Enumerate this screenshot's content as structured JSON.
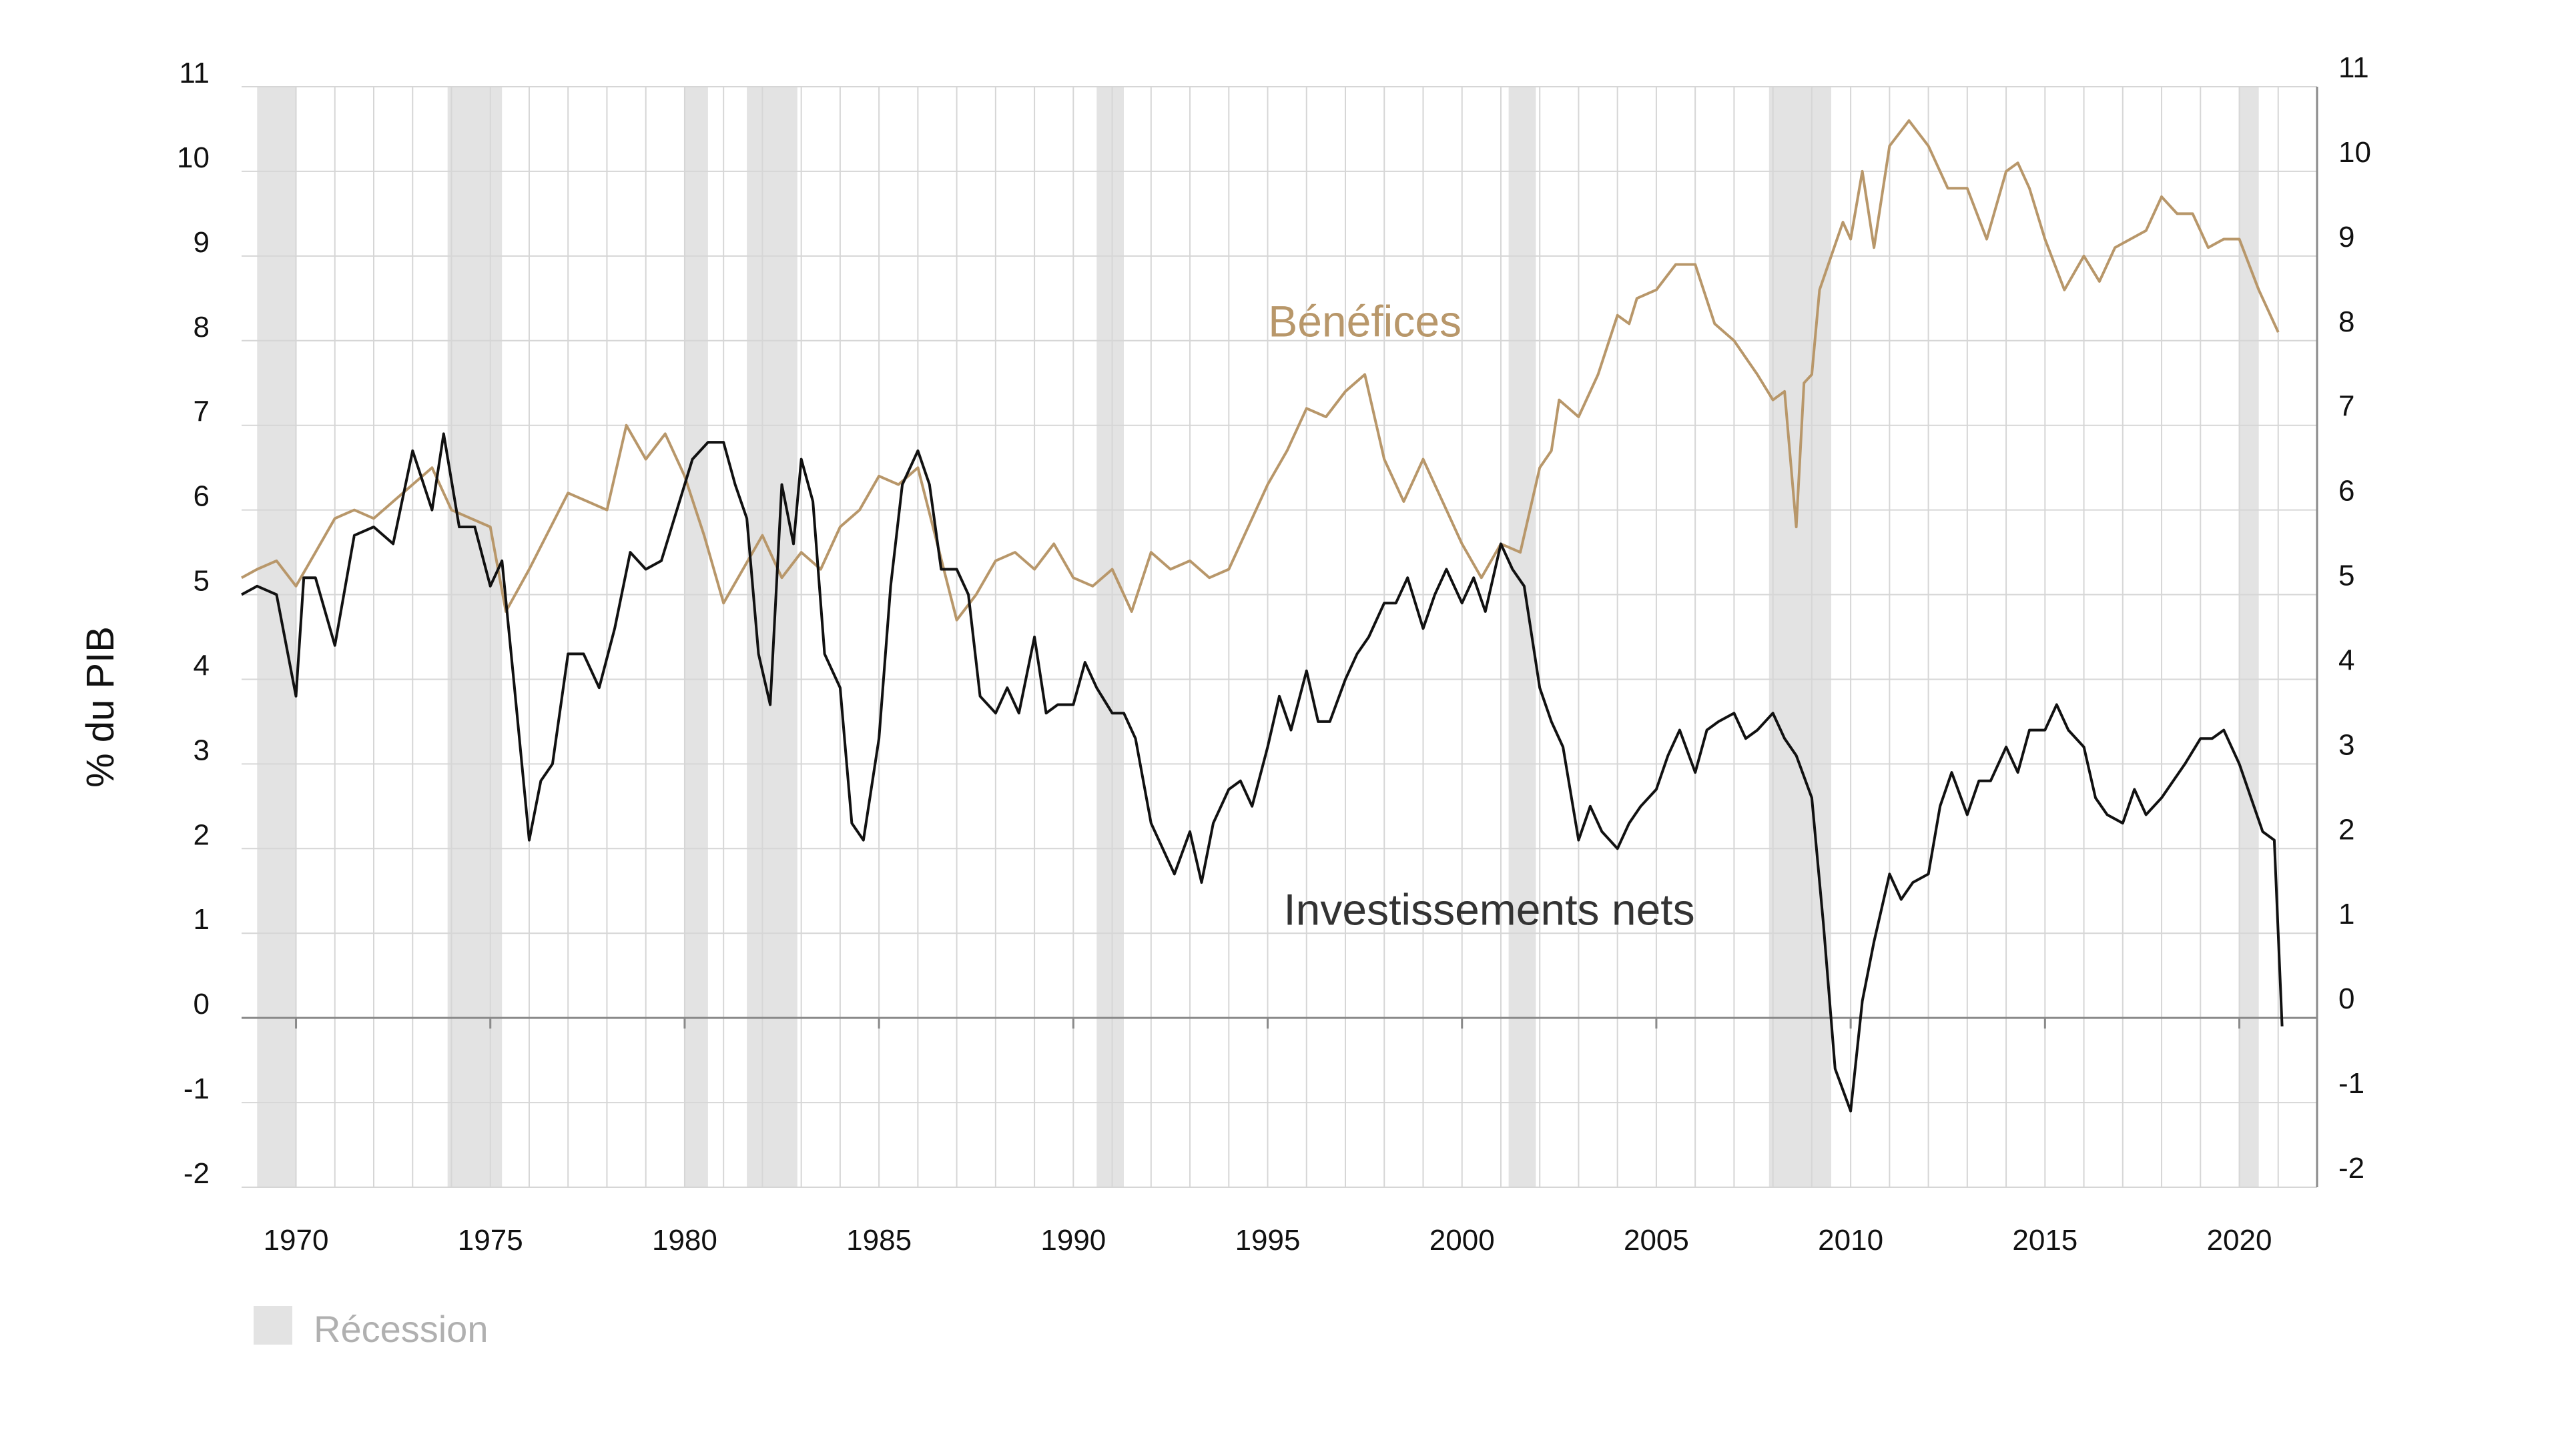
{
  "chart_data": {
    "type": "line",
    "title": "",
    "xlabel": "",
    "ylabel": "% du PIB",
    "xlim": [
      1968.6,
      2022.0
    ],
    "ylim": [
      -2,
      11
    ],
    "y_ticks": [
      "-2",
      "-1",
      "0",
      "1",
      "2",
      "3",
      "4",
      "5",
      "6",
      "7",
      "8",
      "9",
      "10",
      "11"
    ],
    "x_ticks": [
      "1970",
      "1975",
      "1980",
      "1985",
      "1990",
      "1995",
      "2000",
      "2005",
      "2010",
      "2015",
      "2020"
    ],
    "grid": true,
    "right_axis_ticks": true,
    "legend": {
      "label": "Récession",
      "position": "bottom-left",
      "color": "#e3e3e3"
    },
    "recessions": [
      [
        1969.0,
        1970.0
      ],
      [
        1973.9,
        1975.3
      ],
      [
        1980.0,
        1980.6
      ],
      [
        1981.6,
        1982.9
      ],
      [
        1990.6,
        1991.3
      ],
      [
        2001.2,
        2001.9
      ],
      [
        2007.9,
        2009.5
      ],
      [
        2020.0,
        2020.5
      ]
    ],
    "series": [
      {
        "name": "Bénéfices",
        "color": "#b8976a",
        "x": [
          1968.6,
          1969.0,
          1969.5,
          1970.0,
          1970.5,
          1971.0,
          1971.5,
          1972.0,
          1972.5,
          1973.0,
          1973.5,
          1974.0,
          1974.5,
          1975.0,
          1975.4,
          1976.0,
          1977.0,
          1978.0,
          1978.5,
          1979.0,
          1979.5,
          1980.0,
          1980.5,
          1981.0,
          1981.5,
          1982.0,
          1982.5,
          1983.0,
          1983.5,
          1984.0,
          1984.5,
          1985.0,
          1985.5,
          1986.0,
          1986.5,
          1987.0,
          1987.5,
          1988.0,
          1988.5,
          1989.0,
          1989.5,
          1990.0,
          1990.5,
          1991.0,
          1991.5,
          1992.0,
          1992.5,
          1993.0,
          1993.5,
          1994.0,
          1994.5,
          1995.0,
          1995.5,
          1996.0,
          1996.5,
          1997.0,
          1997.5,
          1998.0,
          1998.5,
          1999.0,
          1999.5,
          2000.0,
          2000.5,
          2001.0,
          2001.5,
          2002.0,
          2002.3,
          2002.5,
          2003.0,
          2003.5,
          2004.0,
          2004.3,
          2004.5,
          2005.0,
          2005.5,
          2006.0,
          2006.5,
          2007.0,
          2007.3,
          2007.6,
          2008.0,
          2008.3,
          2008.6,
          2008.8,
          2009.0,
          2009.2,
          2009.5,
          2009.8,
          2010.0,
          2010.3,
          2010.6,
          2011.0,
          2011.5,
          2012.0,
          2012.5,
          2013.0,
          2013.5,
          2014.0,
          2014.3,
          2014.6,
          2015.0,
          2015.5,
          2016.0,
          2016.4,
          2016.8,
          2017.2,
          2017.6,
          2018.0,
          2018.4,
          2018.8,
          2019.2,
          2019.6,
          2020.0,
          2020.5,
          2021.0
        ],
        "values": [
          5.2,
          5.3,
          5.4,
          5.1,
          5.5,
          5.9,
          6.0,
          5.9,
          6.1,
          6.3,
          6.5,
          6.0,
          5.9,
          5.8,
          4.8,
          5.3,
          6.2,
          6.0,
          7.0,
          6.6,
          6.9,
          6.4,
          5.7,
          4.9,
          5.3,
          5.7,
          5.2,
          5.5,
          5.3,
          5.8,
          6.0,
          6.4,
          6.3,
          6.5,
          5.6,
          4.7,
          5.0,
          5.4,
          5.5,
          5.3,
          5.6,
          5.2,
          5.1,
          5.3,
          4.8,
          5.5,
          5.3,
          5.4,
          5.2,
          5.3,
          5.8,
          6.3,
          6.7,
          7.2,
          7.1,
          7.4,
          7.6,
          6.6,
          6.1,
          6.6,
          6.1,
          5.6,
          5.2,
          5.6,
          5.5,
          6.5,
          6.7,
          7.3,
          7.1,
          7.6,
          8.3,
          8.2,
          8.5,
          8.6,
          8.9,
          8.9,
          8.2,
          8.0,
          7.8,
          7.6,
          7.3,
          7.4,
          5.8,
          7.5,
          7.6,
          8.6,
          9.0,
          9.4,
          9.2,
          10.0,
          9.1,
          10.3,
          10.6,
          10.3,
          9.8,
          9.8,
          9.2,
          10.0,
          10.1,
          9.8,
          9.2,
          8.6,
          9.0,
          8.7,
          9.1,
          9.2,
          9.3,
          9.7,
          9.5,
          9.5,
          9.1,
          9.2,
          9.2,
          8.6,
          8.1
        ]
      },
      {
        "name": "Investissements nets",
        "color": "#111111",
        "x": [
          1968.6,
          1969.0,
          1969.5,
          1970.0,
          1970.2,
          1970.5,
          1971.0,
          1971.5,
          1972.0,
          1972.5,
          1973.0,
          1973.5,
          1973.8,
          1974.2,
          1974.6,
          1975.0,
          1975.3,
          1975.6,
          1976.0,
          1976.3,
          1976.6,
          1977.0,
          1977.4,
          1977.8,
          1978.2,
          1978.6,
          1979.0,
          1979.4,
          1979.8,
          1980.2,
          1980.6,
          1981.0,
          1981.3,
          1981.6,
          1981.9,
          1982.2,
          1982.5,
          1982.8,
          1983.0,
          1983.3,
          1983.6,
          1984.0,
          1984.3,
          1984.6,
          1985.0,
          1985.3,
          1985.6,
          1986.0,
          1986.3,
          1986.6,
          1987.0,
          1987.3,
          1987.6,
          1988.0,
          1988.3,
          1988.6,
          1989.0,
          1989.3,
          1989.6,
          1990.0,
          1990.3,
          1990.6,
          1991.0,
          1991.3,
          1991.6,
          1992.0,
          1992.3,
          1992.6,
          1993.0,
          1993.3,
          1993.6,
          1994.0,
          1994.3,
          1994.6,
          1995.0,
          1995.3,
          1995.6,
          1996.0,
          1996.3,
          1996.6,
          1997.0,
          1997.3,
          1997.6,
          1998.0,
          1998.3,
          1998.6,
          1999.0,
          1999.3,
          1999.6,
          2000.0,
          2000.3,
          2000.6,
          2001.0,
          2001.3,
          2001.6,
          2002.0,
          2002.3,
          2002.6,
          2003.0,
          2003.3,
          2003.6,
          2004.0,
          2004.3,
          2004.6,
          2005.0,
          2005.3,
          2005.6,
          2006.0,
          2006.3,
          2006.6,
          2007.0,
          2007.3,
          2007.6,
          2008.0,
          2008.3,
          2008.6,
          2009.0,
          2009.3,
          2009.6,
          2010.0,
          2010.3,
          2010.6,
          2011.0,
          2011.3,
          2011.6,
          2012.0,
          2012.3,
          2012.6,
          2013.0,
          2013.3,
          2013.6,
          2014.0,
          2014.3,
          2014.6,
          2015.0,
          2015.3,
          2015.6,
          2016.0,
          2016.3,
          2016.6,
          2017.0,
          2017.3,
          2017.6,
          2018.0,
          2018.3,
          2018.6,
          2019.0,
          2019.3,
          2019.6,
          2020.0,
          2020.3,
          2020.6,
          2020.9,
          2021.1
        ],
        "values": [
          5.0,
          5.1,
          5.0,
          3.8,
          5.2,
          5.2,
          4.4,
          5.7,
          5.8,
          5.6,
          6.7,
          6.0,
          6.9,
          5.8,
          5.8,
          5.1,
          5.4,
          4.0,
          2.1,
          2.8,
          3.0,
          4.3,
          4.3,
          3.9,
          4.6,
          5.5,
          5.3,
          5.4,
          6.0,
          6.6,
          6.8,
          6.8,
          6.3,
          5.9,
          4.3,
          3.7,
          6.3,
          5.6,
          6.6,
          6.1,
          4.3,
          3.9,
          2.3,
          2.1,
          3.3,
          5.1,
          6.3,
          6.7,
          6.3,
          5.3,
          5.3,
          5.0,
          3.8,
          3.6,
          3.9,
          3.6,
          4.5,
          3.6,
          3.7,
          3.7,
          4.2,
          3.9,
          3.6,
          3.6,
          3.3,
          2.3,
          2.0,
          1.7,
          2.2,
          1.6,
          2.3,
          2.7,
          2.8,
          2.5,
          3.2,
          3.8,
          3.4,
          4.1,
          3.5,
          3.5,
          4.0,
          4.3,
          4.5,
          4.9,
          4.9,
          5.2,
          4.6,
          5.0,
          5.3,
          4.9,
          5.2,
          4.8,
          5.6,
          5.3,
          5.1,
          3.9,
          3.5,
          3.2,
          2.1,
          2.5,
          2.2,
          2.0,
          2.3,
          2.5,
          2.7,
          3.1,
          3.4,
          2.9,
          3.4,
          3.5,
          3.6,
          3.3,
          3.4,
          3.6,
          3.3,
          3.1,
          2.6,
          1.1,
          -0.6,
          -1.1,
          0.2,
          0.9,
          1.7,
          1.4,
          1.6,
          1.7,
          2.5,
          2.9,
          2.4,
          2.8,
          2.8,
          3.2,
          2.9,
          3.4,
          3.4,
          3.7,
          3.4,
          3.2,
          2.6,
          2.4,
          2.3,
          2.7,
          2.4,
          2.6,
          2.8,
          3.0,
          3.3,
          3.3,
          3.4,
          3.0,
          2.6,
          2.2,
          2.1,
          -0.1
        ]
      }
    ],
    "annotations": [
      {
        "text": "Bénéfices",
        "x": 1997.5,
        "y": 8.05,
        "color": "#b8976a",
        "anchor": "middle"
      },
      {
        "text": "Investissements nets",
        "x": 2000.7,
        "y": 1.1,
        "color": "#333333",
        "anchor": "middle"
      }
    ]
  }
}
